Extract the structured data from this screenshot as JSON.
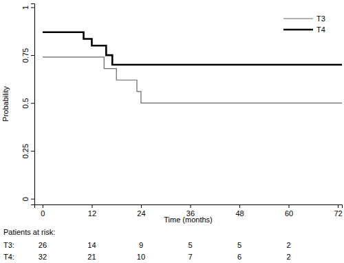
{
  "chart_data": {
    "type": "line",
    "x_label": "Time (months)",
    "y_label": "Probability",
    "xlim": [
      -2,
      73
    ],
    "ylim": [
      -0.03,
      1.02
    ],
    "xticks": [
      0,
      12,
      24,
      36,
      48,
      60,
      72
    ],
    "yticks": [
      0,
      0.25,
      0.5,
      0.75,
      1
    ],
    "grid": false,
    "legend": "top-right",
    "series": [
      {
        "name": "T3",
        "color": "#666666",
        "line_style": "step",
        "x": [
          0,
          15,
          18,
          23,
          24,
          73
        ],
        "values": [
          0.74,
          0.68,
          0.62,
          0.56,
          0.5,
          0.5
        ]
      },
      {
        "name": "T4",
        "color": "#000000",
        "line_style": "step",
        "x": [
          0,
          10,
          12,
          15.5,
          17,
          73
        ],
        "values": [
          0.87,
          0.835,
          0.8,
          0.75,
          0.7,
          0.7
        ]
      }
    ],
    "at_risk": {
      "title": "Patients at risk:",
      "rows": [
        {
          "label": "T3:",
          "values": [
            26,
            14,
            9,
            5,
            5,
            2
          ]
        },
        {
          "label": "T4:",
          "values": [
            32,
            21,
            10,
            7,
            6,
            2
          ]
        }
      ]
    }
  }
}
